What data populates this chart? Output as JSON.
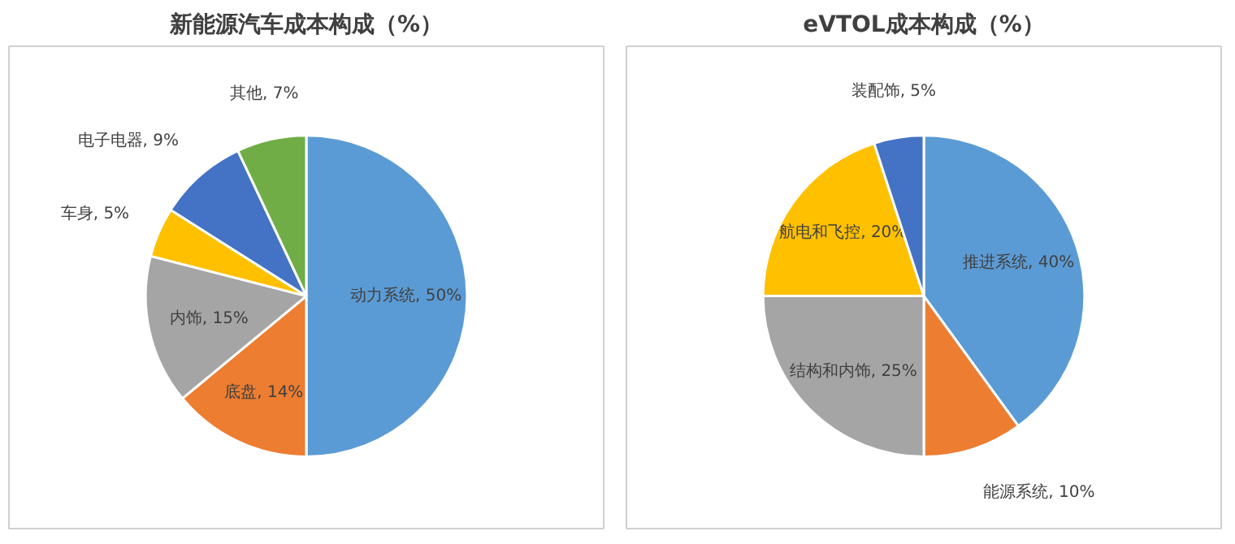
{
  "chart_data": [
    {
      "type": "pie",
      "title": "新能源汽车成本构成（%）",
      "categories": [
        "动力系统",
        "底盘",
        "内饰",
        "车身",
        "电子电器",
        "其他"
      ],
      "values": [
        50,
        14,
        15,
        5,
        9,
        7
      ],
      "value_labels": [
        "50%",
        "14%",
        "15%",
        "5%",
        "9%",
        "7%"
      ],
      "colors": [
        "#5b9bd5",
        "#ed7d31",
        "#a5a5a5",
        "#ffc000",
        "#4472c4",
        "#70ad47"
      ]
    },
    {
      "type": "pie",
      "title": "eVTOL成本构成（%）",
      "categories": [
        "推进系统",
        "能源系统",
        "结构和内饰",
        "航电和飞控",
        "装配饰"
      ],
      "values": [
        40,
        10,
        25,
        20,
        5
      ],
      "value_labels": [
        "40%",
        "10%",
        "25%",
        "20%",
        "5%"
      ],
      "colors": [
        "#5b9bd5",
        "#ed7d31",
        "#a5a5a5",
        "#ffc000",
        "#4472c4"
      ]
    }
  ]
}
